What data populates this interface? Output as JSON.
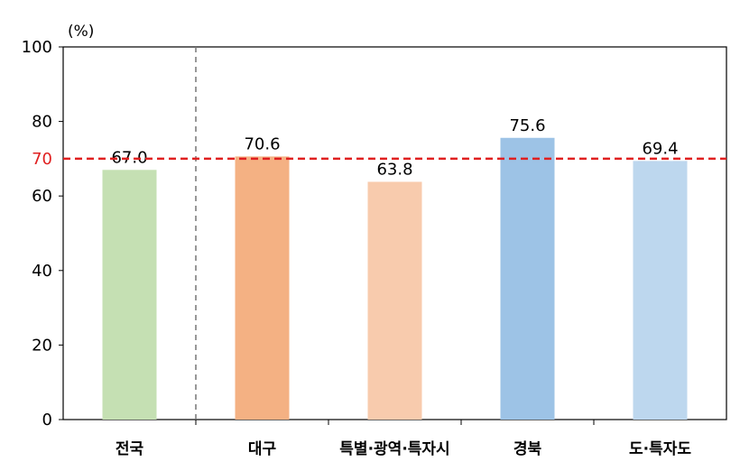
{
  "chart_data": {
    "type": "bar",
    "unit_label": "(%)",
    "categories": [
      "전국",
      "대구",
      "특별·광역·특자시",
      "경북",
      "도·특자도"
    ],
    "values": [
      67.0,
      70.6,
      63.8,
      75.6,
      69.4
    ],
    "value_labels": [
      "67.0",
      "70.6",
      "63.8",
      "75.6",
      "69.4"
    ],
    "bar_colors": [
      "#c5e0b3",
      "#f4b183",
      "#f8cbad",
      "#9dc3e6",
      "#bdd7ee"
    ],
    "ylim": [
      0,
      100
    ],
    "yticks": [
      0,
      20,
      40,
      60,
      80,
      100
    ],
    "reference_line": {
      "value": 70,
      "label": "70",
      "color": "#e02020",
      "style": "dashed"
    },
    "separator_after_category": 0,
    "grid": false,
    "title": "",
    "xlabel": "",
    "ylabel": ""
  }
}
